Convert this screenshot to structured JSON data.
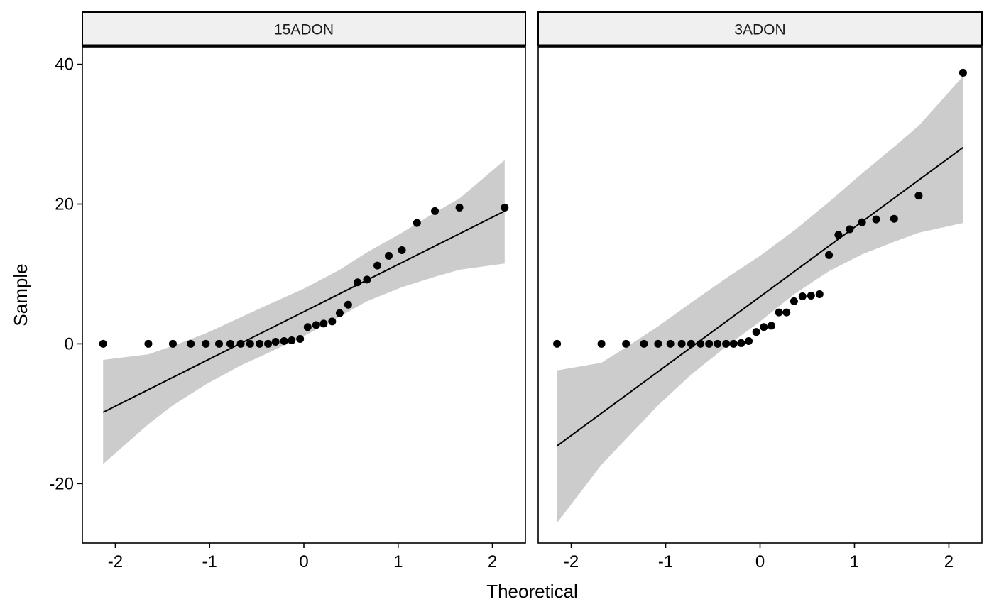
{
  "chart_data": {
    "type": "scatter",
    "xlabel": "Theoretical",
    "ylabel": "Sample",
    "xlim": [
      -2.35,
      2.35
    ],
    "ylim": [
      -28.5,
      42.5
    ],
    "x_ticks": [
      -2,
      -1,
      0,
      1,
      2
    ],
    "x_tick_labels": [
      "-2",
      "-1",
      "0",
      "1",
      "2"
    ],
    "y_ticks": [
      -20,
      0,
      20,
      40
    ],
    "y_tick_labels": [
      "-20",
      "0",
      "20",
      "40"
    ],
    "grid": false,
    "legend": "none",
    "colors": {
      "points": "#000000",
      "band": "#cccccc",
      "strip_fill": "#f0f0f0",
      "line": "#000000"
    },
    "panels": [
      {
        "title": "15ADON",
        "points": [
          [
            -2.13,
            0
          ],
          [
            -1.65,
            0
          ],
          [
            -1.39,
            0
          ],
          [
            -1.2,
            0
          ],
          [
            -1.04,
            0
          ],
          [
            -0.9,
            0
          ],
          [
            -0.78,
            0
          ],
          [
            -0.67,
            0
          ],
          [
            -0.57,
            0
          ],
          [
            -0.47,
            0
          ],
          [
            -0.38,
            0
          ],
          [
            -0.3,
            0.3
          ],
          [
            -0.21,
            0.4
          ],
          [
            -0.13,
            0.5
          ],
          [
            -0.04,
            0.7
          ],
          [
            0.04,
            2.4
          ],
          [
            0.13,
            2.7
          ],
          [
            0.21,
            2.9
          ],
          [
            0.3,
            3.2
          ],
          [
            0.38,
            4.4
          ],
          [
            0.47,
            5.6
          ],
          [
            0.57,
            8.8
          ],
          [
            0.67,
            9.2
          ],
          [
            0.78,
            11.2
          ],
          [
            0.9,
            12.6
          ],
          [
            1.04,
            13.4
          ],
          [
            1.2,
            17.3
          ],
          [
            1.39,
            19.0
          ],
          [
            1.65,
            19.5
          ],
          [
            2.13,
            19.5
          ]
        ],
        "line": [
          [
            -2.13,
            -9.8
          ],
          [
            2.13,
            19.0
          ]
        ],
        "band_x": [
          -2.13,
          -1.65,
          -1.39,
          -1.04,
          -0.67,
          -0.38,
          0,
          0.38,
          0.67,
          1.04,
          1.39,
          1.65,
          2.13
        ],
        "band_upper": [
          -2.3,
          -1.5,
          -0.3,
          1.5,
          3.8,
          5.6,
          7.9,
          10.6,
          13.1,
          15.9,
          18.8,
          20.8,
          26.3
        ],
        "band_lower": [
          -17.2,
          -11.5,
          -8.8,
          -5.8,
          -3.1,
          -1.3,
          1.1,
          3.9,
          6.1,
          8.1,
          9.6,
          10.6,
          11.5
        ]
      },
      {
        "title": "3ADON",
        "points": [
          [
            -2.15,
            0
          ],
          [
            -1.68,
            0
          ],
          [
            -1.42,
            0
          ],
          [
            -1.23,
            0
          ],
          [
            -1.08,
            0
          ],
          [
            -0.95,
            0
          ],
          [
            -0.83,
            0
          ],
          [
            -0.73,
            0
          ],
          [
            -0.63,
            0
          ],
          [
            -0.54,
            0
          ],
          [
            -0.45,
            0
          ],
          [
            -0.36,
            0
          ],
          [
            -0.28,
            0
          ],
          [
            -0.2,
            0.1
          ],
          [
            -0.12,
            0.4
          ],
          [
            -0.04,
            1.7
          ],
          [
            0.04,
            2.4
          ],
          [
            0.12,
            2.6
          ],
          [
            0.2,
            4.5
          ],
          [
            0.28,
            4.5
          ],
          [
            0.36,
            6.1
          ],
          [
            0.45,
            6.8
          ],
          [
            0.54,
            6.9
          ],
          [
            0.63,
            7.1
          ],
          [
            0.73,
            12.7
          ],
          [
            0.83,
            15.6
          ],
          [
            0.95,
            16.4
          ],
          [
            1.08,
            17.4
          ],
          [
            1.23,
            17.8
          ],
          [
            1.42,
            17.9
          ],
          [
            1.68,
            21.2
          ],
          [
            2.15,
            38.8
          ]
        ],
        "line": [
          [
            -2.15,
            -14.6
          ],
          [
            2.15,
            28.1
          ]
        ],
        "band_x": [
          -2.15,
          -1.68,
          -1.42,
          -1.08,
          -0.73,
          -0.36,
          0,
          0.36,
          0.73,
          1.08,
          1.42,
          1.68,
          2.15
        ],
        "band_upper": [
          -3.8,
          -2.7,
          -0.5,
          2.5,
          5.9,
          9.4,
          12.6,
          16.2,
          20.3,
          24.4,
          28.2,
          31.2,
          38.3
        ],
        "band_lower": [
          -25.6,
          -17.3,
          -13.6,
          -8.8,
          -4.4,
          -0.4,
          3.2,
          7.1,
          10.4,
          12.8,
          14.6,
          15.9,
          17.3
        ]
      }
    ]
  }
}
